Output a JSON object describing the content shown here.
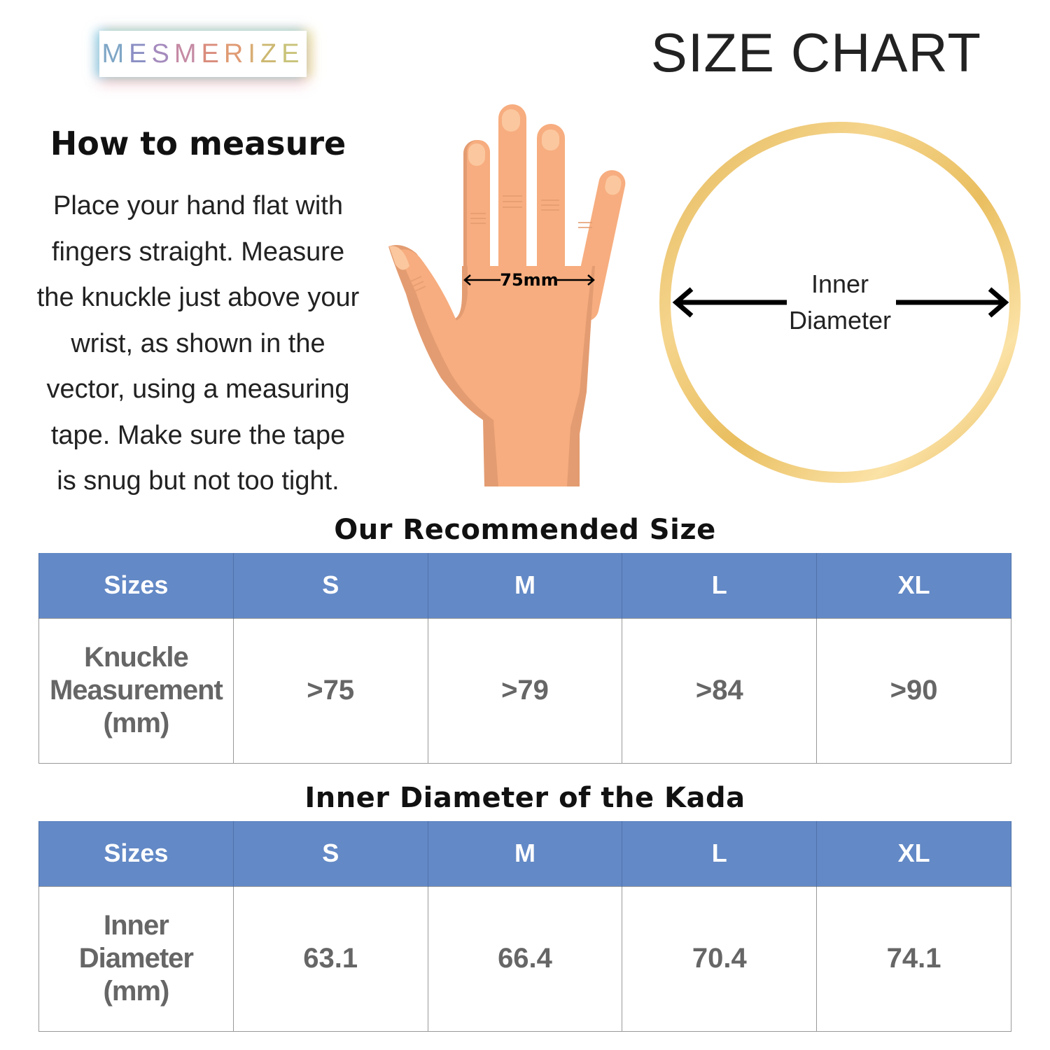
{
  "brand": {
    "logo_text": "MESMERIZE",
    "logo_colors": [
      "#7fa6c6",
      "#8b8fc4",
      "#a58bbd",
      "#c58aa4",
      "#d98c7c",
      "#e09b74",
      "#d9ad74",
      "#cdb872",
      "#c9c37a"
    ]
  },
  "header": {
    "title": "SIZE CHART"
  },
  "instructions": {
    "heading": "How to measure",
    "lines": [
      "Place your hand flat with",
      "fingers straight. Measure",
      "the knuckle just above your",
      "wrist, as shown in the",
      "vector, using a measuring",
      "tape. Make sure the tape",
      "is snug but not too tight."
    ]
  },
  "hand_illustration": {
    "measurement_label": "75mm",
    "skin_color": "#f7ad7f",
    "shade_color": "#e39c71"
  },
  "ring_illustration": {
    "label_line1": "Inner",
    "label_line2": "Diameter",
    "ring_color": "#e8bf5e"
  },
  "colors": {
    "table_header": "#6389c6",
    "cell_text": "#666666"
  },
  "knuckle_table": {
    "title": "Our Recommended Size",
    "headers": [
      "Sizes",
      "S",
      "M",
      "L",
      "XL"
    ],
    "row_label": [
      "Knuckle",
      "Measurement",
      "(mm)"
    ],
    "values": [
      ">75",
      ">79",
      ">84",
      ">90"
    ]
  },
  "diameter_table": {
    "title": "Inner Diameter of the Kada",
    "headers": [
      "Sizes",
      "S",
      "M",
      "L",
      "XL"
    ],
    "row_label": [
      "Inner",
      "Diameter",
      "(mm)"
    ],
    "values": [
      "63.1",
      "66.4",
      "70.4",
      "74.1"
    ]
  }
}
